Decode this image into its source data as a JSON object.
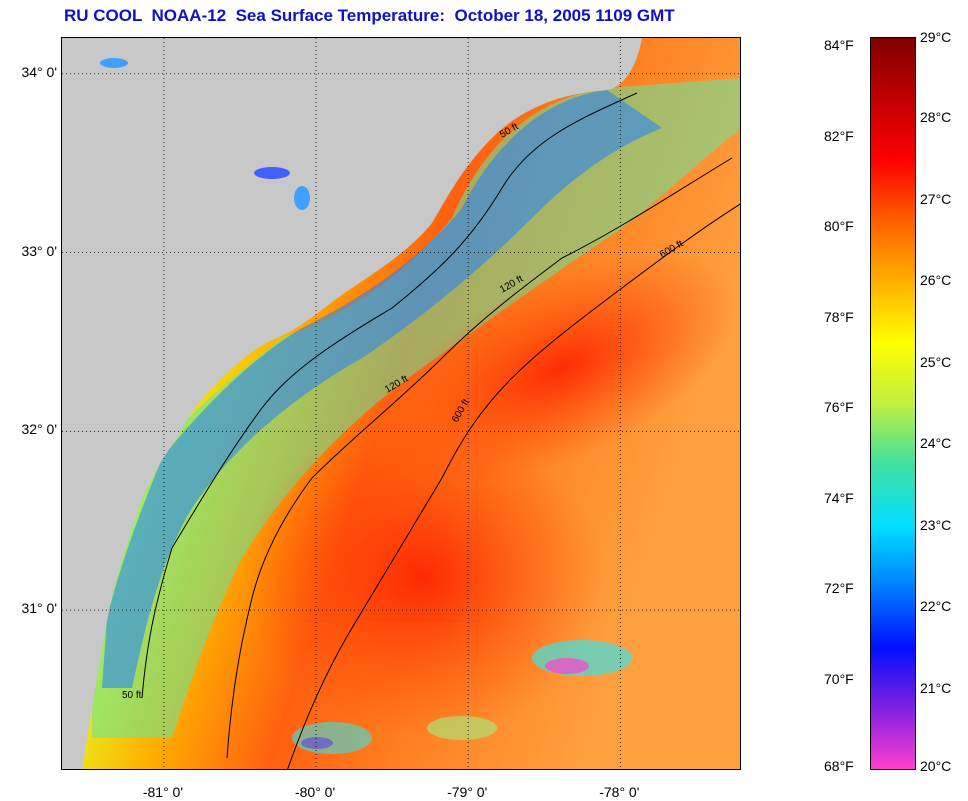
{
  "title": "RU COOL  NOAA-12  Sea Surface Temperature:  October 18, 2005 1109 GMT",
  "map": {
    "latitude_labels": [
      "34° 0'",
      "33° 0'",
      "32° 0'",
      "31° 0'"
    ],
    "longitude_labels": [
      "-81° 0'",
      "-80° 0'",
      "-79° 0'",
      "-78° 0'"
    ],
    "latitude_values": [
      34,
      33,
      32,
      31
    ],
    "longitude_values": [
      -81,
      -80,
      -79,
      -78
    ],
    "lat_range": [
      30.1,
      34.2
    ],
    "lon_range": [
      -81.67,
      -77.2
    ],
    "gridlines": "dotted",
    "land_color": "#c8c8c8",
    "contour_labels": [
      "50 ft",
      "120 ft",
      "600 ft"
    ]
  },
  "colorbar": {
    "fahrenheit_labels": [
      "84°F",
      "82°F",
      "80°F",
      "78°F",
      "76°F",
      "74°F",
      "72°F",
      "70°F",
      "68°F"
    ],
    "celsius_labels": [
      "29°C",
      "28°C",
      "27°C",
      "26°C",
      "25°C",
      "24°C",
      "23°C",
      "22°C",
      "21°C",
      "20°C"
    ],
    "fahrenheit_values": [
      84,
      82,
      80,
      78,
      76,
      74,
      72,
      70,
      68
    ],
    "celsius_values": [
      29,
      28,
      27,
      26,
      25,
      24,
      23,
      22,
      21,
      20
    ],
    "range_celsius": [
      20,
      29
    ],
    "colors": [
      "#ff40d0",
      "#8020e0",
      "#0010ff",
      "#0080ff",
      "#00e0ff",
      "#40e0a0",
      "#c0f040",
      "#ffff00",
      "#ffb000",
      "#ff6000",
      "#ff0000",
      "#c00000",
      "#800000"
    ]
  }
}
